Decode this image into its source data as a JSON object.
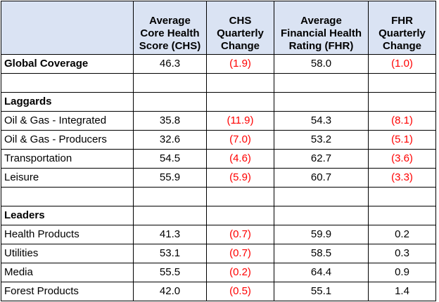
{
  "table": {
    "headers": [
      "",
      "Average Core Health Score (CHS)",
      "CHS Quarterly Change",
      "Average Financial Health Rating (FHR)",
      "FHR Quarterly Change"
    ],
    "global_row": {
      "label": "Global Coverage",
      "chs": "46.3",
      "chs_change": "(1.9)",
      "fhr": "58.0",
      "fhr_change": "(1.0)"
    },
    "laggards": {
      "title": "Laggards",
      "rows": [
        {
          "label": "Oil & Gas - Integrated",
          "chs": "35.8",
          "chs_change": "(11.9)",
          "fhr": "54.3",
          "fhr_change": "(8.1)"
        },
        {
          "label": "Oil & Gas - Producers",
          "chs": "32.6",
          "chs_change": "(7.0)",
          "fhr": "53.2",
          "fhr_change": "(5.1)"
        },
        {
          "label": "Transportation",
          "chs": "54.5",
          "chs_change": "(4.6)",
          "fhr": "62.7",
          "fhr_change": "(3.6)"
        },
        {
          "label": "Leisure",
          "chs": "55.9",
          "chs_change": "(5.9)",
          "fhr": "60.7",
          "fhr_change": "(3.3)"
        }
      ]
    },
    "leaders": {
      "title": "Leaders",
      "rows": [
        {
          "label": "Health Products",
          "chs": "41.3",
          "chs_change": "(0.7)",
          "fhr": "59.9",
          "fhr_change": "0.2"
        },
        {
          "label": "Utilities",
          "chs": "53.1",
          "chs_change": "(0.7)",
          "fhr": "58.5",
          "fhr_change": "0.3"
        },
        {
          "label": "Media",
          "chs": "55.5",
          "chs_change": "(0.2)",
          "fhr": "64.4",
          "fhr_change": "0.9"
        },
        {
          "label": "Forest Products",
          "chs": "42.0",
          "chs_change": "(0.5)",
          "fhr": "55.1",
          "fhr_change": "1.4"
        }
      ]
    }
  },
  "colors": {
    "header_bg": "#dae3f3",
    "negative": "#ff0000",
    "border": "#000000"
  }
}
